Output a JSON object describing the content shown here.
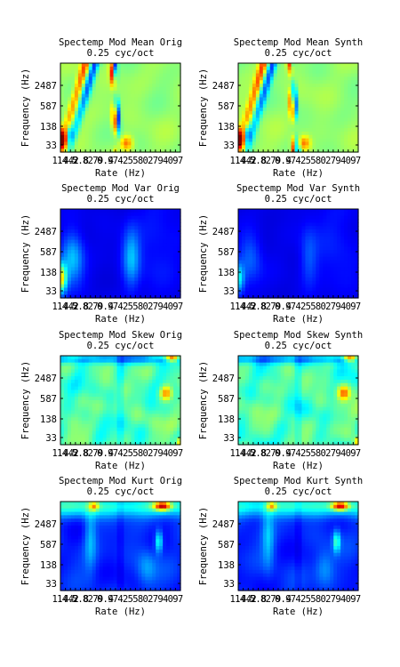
{
  "figure": {
    "colormap_stops": [
      "#00008f",
      "#0000ff",
      "#0080ff",
      "#00ffff",
      "#80ff80",
      "#ffff00",
      "#ff8000",
      "#ff0000",
      "#800000"
    ]
  },
  "chart_data": [
    {
      "type": "heatmap",
      "title": "Spectemp Mod Mean Orig",
      "subtitle": "0.25 cyc/oct",
      "xlabel": "Rate (Hz)",
      "ylabel": "Frequency (Hz)",
      "ytick_labels": [
        "2487",
        "587",
        "138",
        "33"
      ],
      "xtick_labels": [
        "1.4",
        "1.4",
        "4.2",
        "2",
        "5.8",
        "8",
        "2",
        "7",
        "9",
        "0.4",
        "9",
        "7",
        "4",
        "2",
        "5",
        "5",
        "8",
        "0",
        "2",
        "7",
        "9",
        "4",
        "0",
        "9",
        "7"
      ],
      "pattern": "mean"
    },
    {
      "type": "heatmap",
      "title": "Spectemp Mod Mean Synth",
      "subtitle": "0.25 cyc/oct",
      "xlabel": "Rate (Hz)",
      "ylabel": "Frequency (Hz)",
      "ytick_labels": [
        "2487",
        "587",
        "138",
        "33"
      ],
      "xtick_labels": [
        "1.4",
        "1.4",
        "4.2",
        "2",
        "5.8",
        "8",
        "2",
        "7",
        "9",
        "0.4",
        "9",
        "7",
        "4",
        "2",
        "5",
        "5",
        "8",
        "0",
        "2",
        "7",
        "9",
        "4",
        "0",
        "9",
        "7"
      ],
      "pattern": "mean"
    },
    {
      "type": "heatmap",
      "title": "Spectemp Mod Var Orig",
      "subtitle": "0.25 cyc/oct",
      "xlabel": "Rate (Hz)",
      "ylabel": "Frequency (Hz)",
      "ytick_labels": [
        "2487",
        "587",
        "138",
        "33"
      ],
      "xtick_labels": [
        "1.4",
        "1.4",
        "4.2",
        "2",
        "5.8",
        "8",
        "2",
        "7",
        "9",
        "0.4",
        "9",
        "7",
        "4",
        "2",
        "5",
        "5",
        "8",
        "0",
        "2",
        "7",
        "9",
        "4",
        "0",
        "9",
        "7"
      ],
      "pattern": "var"
    },
    {
      "type": "heatmap",
      "title": "Spectemp Mod Var Synth",
      "subtitle": "0.25 cyc/oct",
      "xlabel": "Rate (Hz)",
      "ylabel": "Frequency (Hz)",
      "ytick_labels": [
        "2487",
        "587",
        "138",
        "33"
      ],
      "xtick_labels": [
        "1.4",
        "1.4",
        "4.2",
        "2",
        "5.8",
        "8",
        "2",
        "7",
        "9",
        "0.4",
        "9",
        "7",
        "4",
        "2",
        "5",
        "5",
        "8",
        "0",
        "2",
        "7",
        "9",
        "4",
        "0",
        "9",
        "7"
      ],
      "pattern": "var"
    },
    {
      "type": "heatmap",
      "title": "Spectemp Mod Skew Orig",
      "subtitle": "0.25 cyc/oct",
      "xlabel": "Rate (Hz)",
      "ylabel": "Frequency (Hz)",
      "ytick_labels": [
        "2487",
        "587",
        "138",
        "33"
      ],
      "xtick_labels": [
        "1.4",
        "1.4",
        "4.2",
        "2",
        "5.8",
        "8",
        "2",
        "7",
        "9",
        "0.4",
        "9",
        "7",
        "4",
        "2",
        "5",
        "5",
        "8",
        "0",
        "2",
        "7",
        "9",
        "4",
        "0",
        "9",
        "7"
      ],
      "pattern": "skew"
    },
    {
      "type": "heatmap",
      "title": "Spectemp Mod Skew Synth",
      "subtitle": "0.25 cyc/oct",
      "xlabel": "Rate (Hz)",
      "ylabel": "Frequency (Hz)",
      "ytick_labels": [
        "2487",
        "587",
        "138",
        "33"
      ],
      "xtick_labels": [
        "1.4",
        "1.4",
        "4.2",
        "2",
        "5.8",
        "8",
        "2",
        "7",
        "9",
        "0.4",
        "9",
        "7",
        "4",
        "2",
        "5",
        "5",
        "8",
        "0",
        "2",
        "7",
        "9",
        "4",
        "0",
        "9",
        "7"
      ],
      "pattern": "skew"
    },
    {
      "type": "heatmap",
      "title": "Spectemp Mod Kurt Orig",
      "subtitle": "0.25 cyc/oct",
      "xlabel": "Rate (Hz)",
      "ylabel": "Frequency (Hz)",
      "ytick_labels": [
        "2487",
        "587",
        "138",
        "33"
      ],
      "xtick_labels": [
        "1.4",
        "1.4",
        "4.2",
        "2",
        "5.8",
        "8",
        "2",
        "7",
        "9",
        "0.4",
        "9",
        "7",
        "4",
        "2",
        "5",
        "5",
        "8",
        "0",
        "2",
        "7",
        "9",
        "4",
        "0",
        "9",
        "7"
      ],
      "pattern": "kurt"
    },
    {
      "type": "heatmap",
      "title": "Spectemp Mod Kurt Synth",
      "subtitle": "0.25 cyc/oct",
      "xlabel": "Rate (Hz)",
      "ylabel": "Frequency (Hz)",
      "ytick_labels": [
        "2487",
        "587",
        "138",
        "33"
      ],
      "xtick_labels": [
        "1.4",
        "1.4",
        "4.2",
        "2",
        "5.8",
        "8",
        "2",
        "7",
        "9",
        "0.4",
        "9",
        "7",
        "4",
        "2",
        "5",
        "5",
        "8",
        "0",
        "2",
        "7",
        "9",
        "4",
        "0",
        "9",
        "7"
      ],
      "pattern": "kurt"
    }
  ]
}
